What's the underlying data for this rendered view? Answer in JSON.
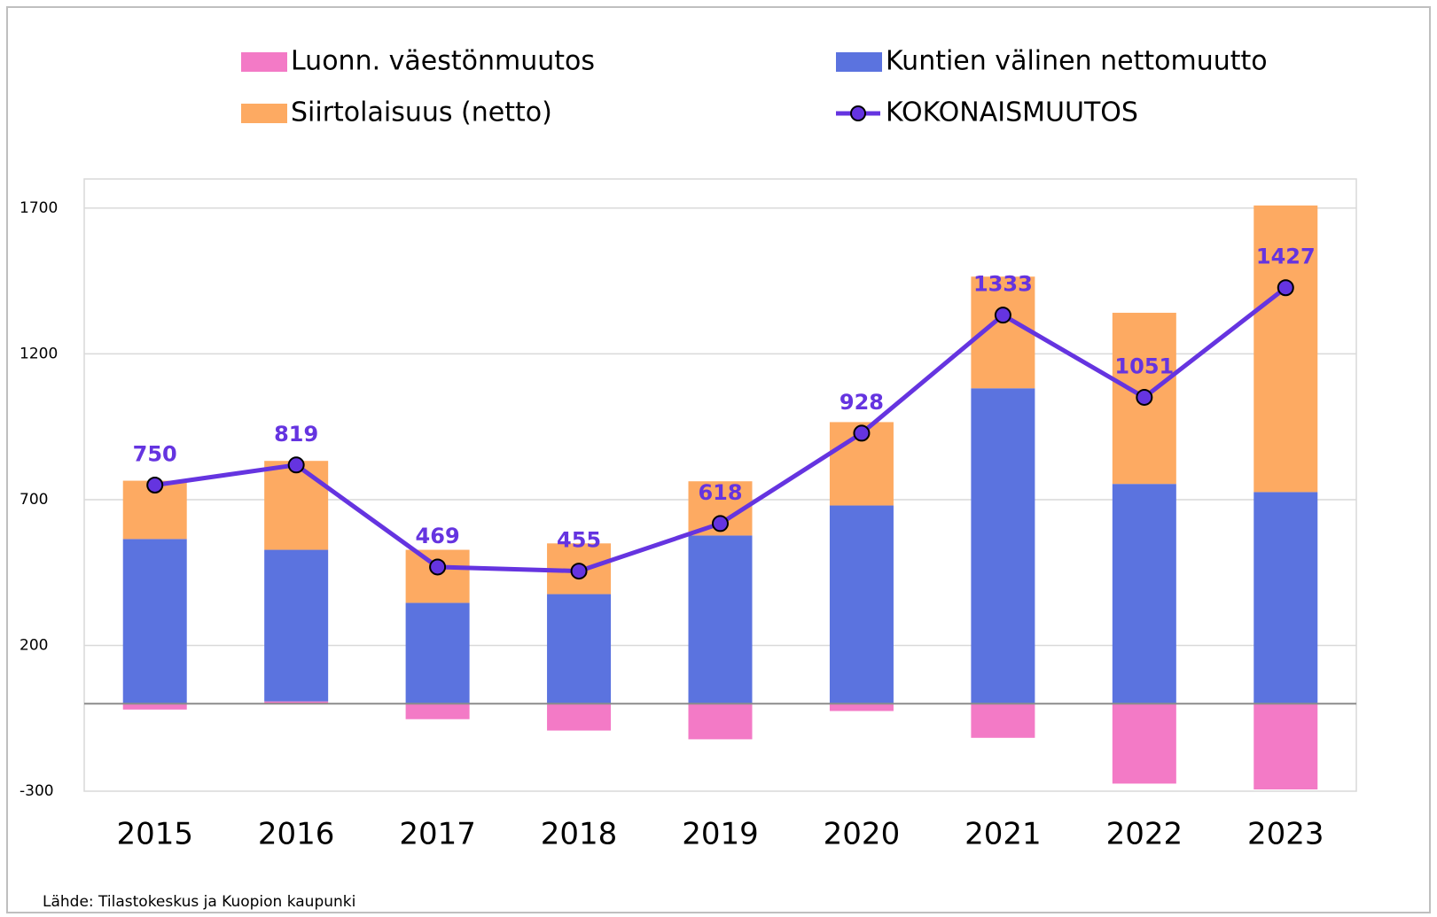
{
  "chart_data": {
    "type": "bar",
    "stacked": true,
    "categories": [
      "2015",
      "2016",
      "2017",
      "2018",
      "2019",
      "2020",
      "2021",
      "2022",
      "2023"
    ],
    "series": [
      {
        "name": "Luonn. väestönmuutos",
        "color": "#f37ac6",
        "values": [
          -20,
          8,
          -53,
          -92,
          -122,
          -25,
          -117,
          -274,
          -294
        ]
      },
      {
        "name": "Kuntien välinen nettomuutto",
        "color": "#5b73df",
        "values": [
          565,
          520,
          346,
          376,
          577,
          680,
          1082,
          754,
          726
        ]
      },
      {
        "name": "Siirtolaisuus (netto)",
        "color": "#fdaa62",
        "values": [
          200,
          305,
          182,
          174,
          186,
          286,
          383,
          587,
          983
        ]
      },
      {
        "name": "KOKONAISMUUTOS",
        "type": "line",
        "color": "#6534e0",
        "values": [
          750,
          819,
          469,
          455,
          618,
          928,
          1333,
          1051,
          1427
        ]
      }
    ],
    "ylim": [
      -300,
      1800
    ],
    "yticks": [
      1700,
      1200,
      700,
      200,
      -300
    ],
    "grid": true,
    "legend": "top",
    "source": "Lähde: Tilastokeskus ja Kuopion kaupunki"
  }
}
